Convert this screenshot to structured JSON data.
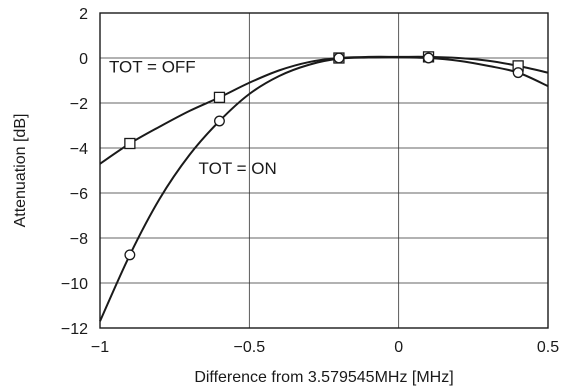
{
  "chart_data": {
    "type": "line",
    "title": "",
    "xlabel": "Difference from 3.579545MHz [MHz]",
    "ylabel": "Attenuation [dB]",
    "xlim": [
      -1,
      0.5
    ],
    "ylim": [
      -12,
      2
    ],
    "xticks": [
      -1,
      -0.5,
      0,
      0.5
    ],
    "xtick_labels": [
      "−1",
      "−0.5",
      "0",
      "0.5"
    ],
    "yticks": [
      2,
      0,
      -2,
      -4,
      -6,
      -8,
      -10,
      -12
    ],
    "ytick_labels": [
      "2",
      "0",
      "−2",
      "−4",
      "−6",
      "−8",
      "−10",
      "−12"
    ],
    "grid": true,
    "series": [
      {
        "name": "TOT = OFF",
        "marker": "square",
        "points": [
          [
            -0.9,
            -3.8
          ],
          [
            -0.6,
            -1.75
          ],
          [
            -0.2,
            0.0
          ],
          [
            0.1,
            0.05
          ],
          [
            0.4,
            -0.35
          ]
        ],
        "curve": [
          [
            -1.0,
            -4.7
          ],
          [
            -0.9,
            -3.8
          ],
          [
            -0.8,
            -3.05
          ],
          [
            -0.7,
            -2.35
          ],
          [
            -0.6,
            -1.75
          ],
          [
            -0.5,
            -1.1
          ],
          [
            -0.4,
            -0.55
          ],
          [
            -0.3,
            -0.18
          ],
          [
            -0.2,
            0.0
          ],
          [
            -0.1,
            0.05
          ],
          [
            0.0,
            0.05
          ],
          [
            0.1,
            0.05
          ],
          [
            0.2,
            0.0
          ],
          [
            0.3,
            -0.12
          ],
          [
            0.4,
            -0.35
          ],
          [
            0.5,
            -0.65
          ]
        ]
      },
      {
        "name": "TOT = ON",
        "marker": "circle",
        "points": [
          [
            -0.9,
            -8.75
          ],
          [
            -0.6,
            -2.8
          ],
          [
            -0.2,
            0.0
          ],
          [
            0.1,
            0.0
          ],
          [
            0.4,
            -0.65
          ]
        ],
        "curve": [
          [
            -1.0,
            -11.7
          ],
          [
            -0.9,
            -8.75
          ],
          [
            -0.8,
            -6.25
          ],
          [
            -0.7,
            -4.3
          ],
          [
            -0.6,
            -2.8
          ],
          [
            -0.5,
            -1.6
          ],
          [
            -0.4,
            -0.8
          ],
          [
            -0.3,
            -0.3
          ],
          [
            -0.2,
            -0.03
          ],
          [
            -0.1,
            0.02
          ],
          [
            0.0,
            0.03
          ],
          [
            0.1,
            0.0
          ],
          [
            0.2,
            -0.12
          ],
          [
            0.3,
            -0.35
          ],
          [
            0.4,
            -0.65
          ],
          [
            0.5,
            -1.25
          ]
        ]
      }
    ],
    "annotations": [
      {
        "text": "TOT = OFF",
        "x": -0.97,
        "y": -0.65
      },
      {
        "text": "TOT = ON",
        "x": -0.67,
        "y": -5.15
      }
    ]
  }
}
